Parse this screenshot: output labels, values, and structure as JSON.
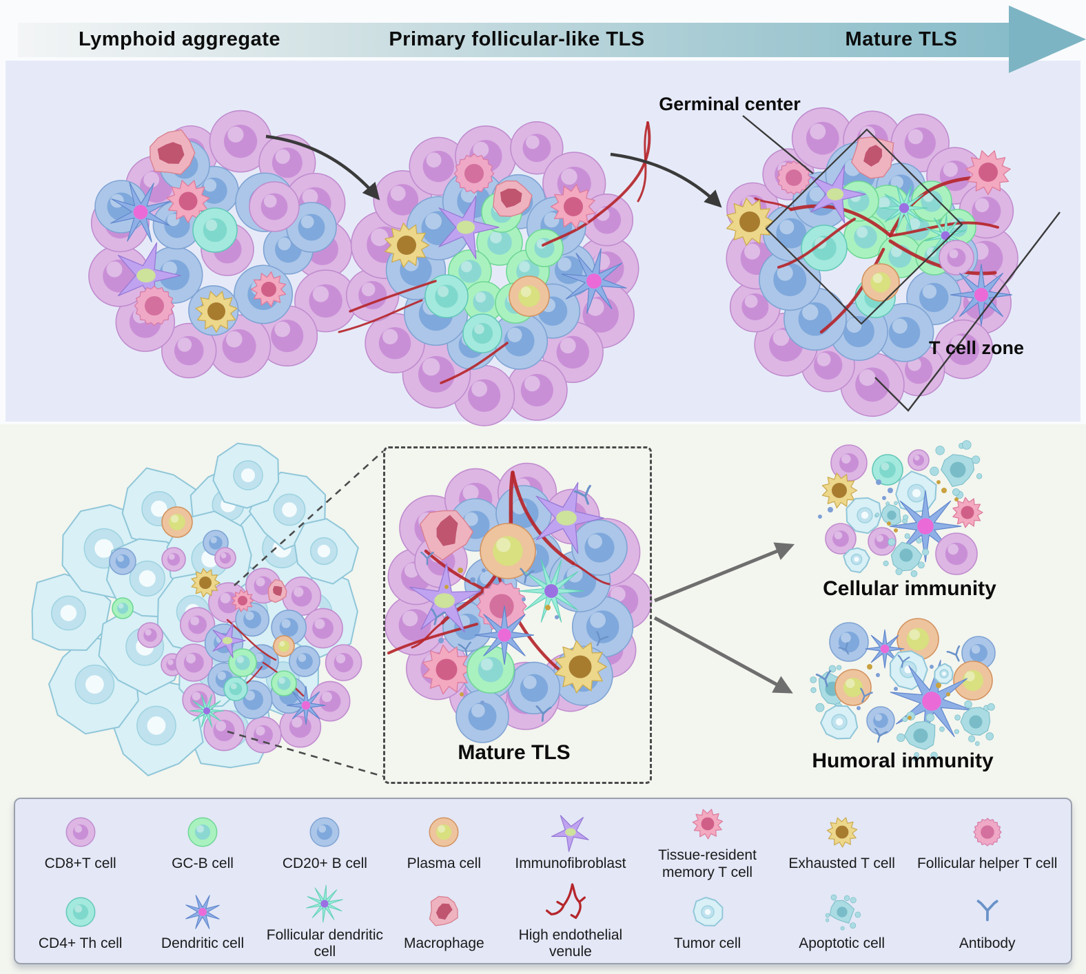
{
  "figure": {
    "stages": [
      "Lymphoid aggregate",
      "Primary follicular-like TLS",
      "Mature TLS"
    ],
    "annotations": {
      "germinal_center": "Germinal center",
      "t_cell_zone": "T cell zone",
      "mature_tls_box": "Mature TLS",
      "cellular_immunity": "Cellular immunity",
      "humoral_immunity": "Humoral immunity"
    },
    "colors": {
      "banner_teal": "#88bcc9",
      "background_top": "#e6eaf8",
      "background_bottom": "#f3f5ef",
      "vessel_red": "#b5262b",
      "annotation_black": "#3a3a3a",
      "arrow_gray": "#6e6e6e"
    }
  },
  "cell_colors": {
    "cd8": {
      "b": "#ddb6e4",
      "e": "#c08cce",
      "n": "#c98fd6"
    },
    "gcb": {
      "b": "#a9f2bf",
      "e": "#6fd695",
      "n": "#8bd8d2"
    },
    "b20": {
      "b": "#abc6e8",
      "e": "#7fa3d4",
      "n": "#7fa8dc"
    },
    "plasma": {
      "b": "#edc49e",
      "e": "#d3925f",
      "n": "#d8e07f"
    },
    "fib": {
      "b": "#bfa3f0",
      "e": "#9678d6",
      "n": "#cde29b"
    },
    "trm": {
      "b": "#f3a9c0",
      "e": "#dd7c9c",
      "n": "#d05f88"
    },
    "tex": {
      "b": "#ecd78b",
      "e": "#ccab50",
      "n": "#a87c2f"
    },
    "tfh": {
      "b": "#efa9c6",
      "e": "#d77ca8",
      "n": "#d4709e"
    },
    "cd4": {
      "b": "#a4e9de",
      "e": "#62c8b8",
      "n": "#7fd8cc"
    },
    "dc": {
      "b": "#8fb0e6",
      "e": "#6086cc",
      "n": "#ea6ad8"
    },
    "fdc": {
      "b": "#9cecd9",
      "e": "#5ecfb6",
      "n": "#9b70e2"
    },
    "mac": {
      "b": "#efb3c0",
      "e": "#d9808f",
      "n": "#c05570"
    },
    "tum": {
      "b": "#d8f0f6",
      "e": "#8fc6d8",
      "n": "#bfe2ee"
    },
    "apo": {
      "b": "#abdce3",
      "e": "#7fc0ca",
      "n": "#79bcc8"
    },
    "hev": {
      "stroke": "#b5262b"
    },
    "ab": {
      "stroke": "#6a92c8"
    }
  },
  "legend": {
    "rows": [
      [
        {
          "label": "CD8+T cell",
          "icon": "cd8-t-cell-icon"
        },
        {
          "label": "GC-B cell",
          "icon": "gc-b-cell-icon"
        },
        {
          "label": "CD20+ B cell",
          "icon": "cd20-b-cell-icon"
        },
        {
          "label": "Plasma cell",
          "icon": "plasma-cell-icon"
        },
        {
          "label": "Immunofibroblast",
          "icon": "immunofibroblast-icon"
        },
        {
          "label": "Tissue-resident memory T cell",
          "icon": "tissue-resident-memory-t-cell-icon"
        },
        {
          "label": "Exhausted T cell",
          "icon": "exhausted-t-cell-icon"
        },
        {
          "label": "Follicular helper T cell",
          "icon": "follicular-helper-t-cell-icon"
        }
      ],
      [
        {
          "label": "CD4+ Th cell",
          "icon": "cd4-th-cell-icon"
        },
        {
          "label": "Dendritic cell",
          "icon": "dendritic-cell-icon"
        },
        {
          "label": "Follicular dendritic cell",
          "icon": "follicular-dendritic-cell-icon"
        },
        {
          "label": "Macrophage",
          "icon": "macrophage-icon"
        },
        {
          "label": "High endothelial venule",
          "icon": "high-endothelial-venule-icon"
        },
        {
          "label": "Tumor cell",
          "icon": "tumor-cell-icon"
        },
        {
          "label": "Apoptotic cell",
          "icon": "apoptotic-cell-icon"
        },
        {
          "label": "Antibody",
          "icon": "antibody-icon"
        }
      ]
    ]
  }
}
